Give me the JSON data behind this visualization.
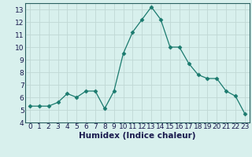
{
  "x": [
    0,
    1,
    2,
    3,
    4,
    5,
    6,
    7,
    8,
    9,
    10,
    11,
    12,
    13,
    14,
    15,
    16,
    17,
    18,
    19,
    20,
    21,
    22,
    23
  ],
  "y": [
    5.3,
    5.3,
    5.3,
    5.6,
    6.3,
    6.0,
    6.5,
    6.5,
    5.1,
    6.5,
    9.5,
    11.2,
    12.2,
    13.2,
    12.2,
    10.0,
    10.0,
    8.7,
    7.8,
    7.5,
    7.5,
    6.5,
    6.1,
    4.7
  ],
  "line_color": "#1a7a6e",
  "marker": "D",
  "marker_size": 2.5,
  "bg_color": "#d8f0ed",
  "grid_color": "#c0d8d4",
  "xlabel": "Humidex (Indice chaleur)",
  "xlim": [
    -0.5,
    23.5
  ],
  "ylim": [
    4,
    13.5
  ],
  "yticks": [
    4,
    5,
    6,
    7,
    8,
    9,
    10,
    11,
    12,
    13
  ],
  "xticks": [
    0,
    1,
    2,
    3,
    4,
    5,
    6,
    7,
    8,
    9,
    10,
    11,
    12,
    13,
    14,
    15,
    16,
    17,
    18,
    19,
    20,
    21,
    22,
    23
  ],
  "tick_fontsize": 6.5,
  "xlabel_fontsize": 7.5,
  "label_color": "#1a1a4e",
  "spine_color": "#2a6060"
}
